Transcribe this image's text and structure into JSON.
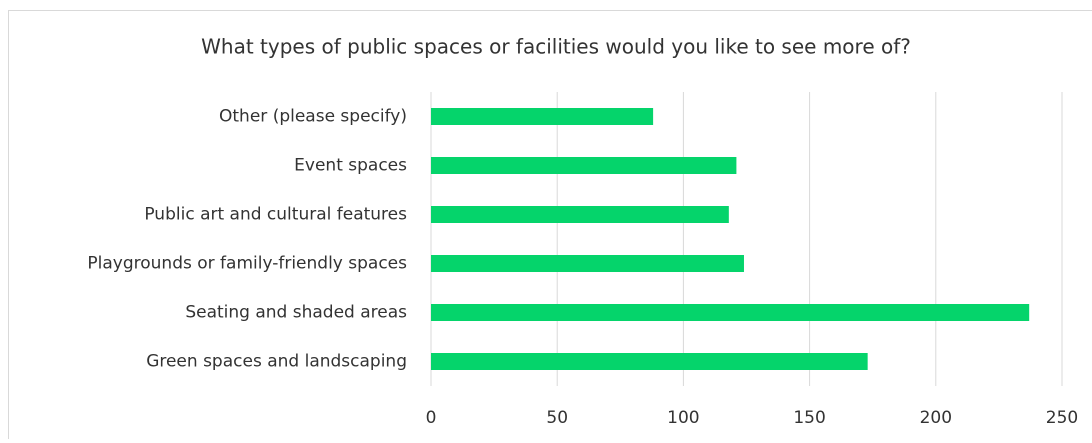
{
  "chart_data": {
    "type": "bar",
    "orientation": "horizontal",
    "title": "What types of public spaces or facilities would you like to see more of?",
    "categories": [
      "Other (please specify)",
      "Event spaces",
      "Public art and cultural features",
      "Playgrounds or family-friendly spaces",
      "Seating and shaded areas",
      "Green spaces and landscaping"
    ],
    "values": [
      88,
      121,
      118,
      124,
      237,
      173
    ],
    "color": "#05d46b",
    "xlim": [
      0,
      250
    ],
    "xticks": [
      0,
      50,
      100,
      150,
      200,
      250
    ],
    "grid": true
  }
}
